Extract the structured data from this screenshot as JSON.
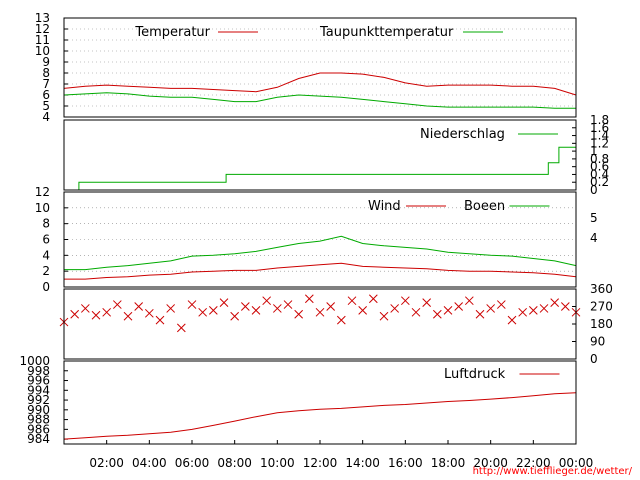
{
  "chart_data": [
    {
      "type": "line",
      "ylim": [
        4,
        13
      ],
      "yticks": [
        4,
        5,
        6,
        7,
        8,
        9,
        10,
        11,
        12,
        13
      ],
      "grid": true,
      "legend_position": "top-right",
      "series": [
        {
          "name": "Temperatur",
          "color": "#cc0000",
          "x": [
            0,
            1,
            2,
            3,
            4,
            5,
            6,
            7,
            8,
            9,
            10,
            11,
            12,
            13,
            14,
            15,
            16,
            17,
            18,
            19,
            20,
            21,
            22,
            23,
            24
          ],
          "values": [
            6.6,
            6.8,
            6.9,
            6.8,
            6.7,
            6.6,
            6.6,
            6.5,
            6.4,
            6.3,
            6.7,
            7.5,
            8.0,
            8.0,
            7.9,
            7.6,
            7.1,
            6.8,
            6.9,
            6.9,
            6.9,
            6.8,
            6.8,
            6.6,
            6.0
          ]
        },
        {
          "name": "Taupunkttemperatur",
          "color": "#00aa00",
          "x": [
            0,
            1,
            2,
            3,
            4,
            5,
            6,
            7,
            8,
            9,
            10,
            11,
            12,
            13,
            14,
            15,
            16,
            17,
            18,
            19,
            20,
            21,
            22,
            23,
            24
          ],
          "values": [
            6.0,
            6.1,
            6.2,
            6.1,
            5.9,
            5.8,
            5.8,
            5.6,
            5.4,
            5.4,
            5.8,
            6.0,
            5.9,
            5.8,
            5.6,
            5.4,
            5.2,
            5.0,
            4.9,
            4.9,
            4.9,
            4.9,
            4.9,
            4.8,
            4.8
          ]
        }
      ]
    },
    {
      "type": "line",
      "ylim": [
        0,
        1.8
      ],
      "yticks": [
        0,
        0.2,
        0.4,
        0.6,
        0.8,
        1.0,
        1.2,
        1.4,
        1.6,
        1.8
      ],
      "ytick_labels": [
        "0",
        "0.2",
        "0.4",
        "0.6",
        "0.8",
        "1",
        "1.2",
        "1.4",
        "1.6",
        "1.8"
      ],
      "legend_position": "top-right",
      "series": [
        {
          "name": "Niederschlag",
          "color": "#00aa00",
          "x": [
            0.7,
            0.7,
            7.6,
            7.6,
            22.7,
            22.7,
            23.2,
            23.2,
            24
          ],
          "values": [
            0,
            0.2,
            0.2,
            0.4,
            0.4,
            0.7,
            0.7,
            1.1,
            1.1
          ]
        }
      ]
    },
    {
      "type": "line",
      "ylim": [
        0,
        12
      ],
      "yticks": [
        0,
        2,
        4,
        6,
        8,
        10,
        12
      ],
      "y2ticks": [
        4,
        5
      ],
      "grid": true,
      "legend_position": "top-right",
      "series": [
        {
          "name": "Wind",
          "color": "#cc0000",
          "x": [
            0,
            1,
            2,
            3,
            4,
            5,
            6,
            7,
            8,
            9,
            10,
            11,
            12,
            13,
            14,
            15,
            16,
            17,
            18,
            19,
            20,
            21,
            22,
            23,
            24
          ],
          "values": [
            1.0,
            1.0,
            1.2,
            1.3,
            1.5,
            1.6,
            1.9,
            2.0,
            2.1,
            2.1,
            2.4,
            2.6,
            2.8,
            3.0,
            2.6,
            2.5,
            2.4,
            2.3,
            2.1,
            2.0,
            2.0,
            1.9,
            1.8,
            1.6,
            1.3
          ]
        },
        {
          "name": "Boeen",
          "color": "#00aa00",
          "x": [
            0,
            1,
            2,
            3,
            4,
            5,
            6,
            7,
            8,
            9,
            10,
            11,
            12,
            13,
            14,
            15,
            16,
            17,
            18,
            19,
            20,
            21,
            22,
            23,
            24
          ],
          "values": [
            2.2,
            2.2,
            2.5,
            2.7,
            3.0,
            3.3,
            3.9,
            4.0,
            4.2,
            4.5,
            5.0,
            5.5,
            5.8,
            6.4,
            5.5,
            5.2,
            5.0,
            4.8,
            4.4,
            4.2,
            4.0,
            3.9,
            3.6,
            3.3,
            2.7
          ]
        }
      ]
    },
    {
      "type": "scatter",
      "ylim": [
        0,
        360
      ],
      "yticks": [
        0,
        90,
        180,
        270,
        360
      ],
      "marker_color": "#cc0000",
      "x": [
        0,
        0.5,
        1,
        1.5,
        2,
        2.5,
        3,
        3.5,
        4,
        4.5,
        5,
        5.5,
        6,
        6.5,
        7,
        7.5,
        8,
        8.5,
        9,
        9.5,
        10,
        10.5,
        11,
        11.5,
        12,
        12.5,
        13,
        13.5,
        14,
        14.5,
        15,
        15.5,
        16,
        16.5,
        17,
        17.5,
        18,
        18.5,
        19,
        19.5,
        20,
        20.5,
        21,
        21.5,
        22,
        22.5,
        23,
        23.5,
        24
      ],
      "values": [
        190,
        230,
        260,
        225,
        240,
        280,
        220,
        270,
        235,
        200,
        260,
        160,
        280,
        240,
        250,
        290,
        220,
        270,
        250,
        300,
        260,
        280,
        230,
        310,
        240,
        270,
        200,
        300,
        250,
        310,
        220,
        260,
        300,
        240,
        290,
        230,
        250,
        270,
        300,
        230,
        260,
        280,
        200,
        240,
        250,
        260,
        290,
        270,
        240
      ]
    },
    {
      "type": "line",
      "ylim": [
        983,
        1000
      ],
      "yticks": [
        984,
        986,
        988,
        990,
        992,
        994,
        996,
        998,
        1000
      ],
      "legend_position": "top-right",
      "series": [
        {
          "name": "Luftdruck",
          "color": "#cc0000",
          "x": [
            0,
            1,
            2,
            3,
            4,
            5,
            6,
            7,
            8,
            9,
            10,
            11,
            12,
            13,
            14,
            15,
            16,
            17,
            18,
            19,
            20,
            21,
            22,
            23,
            24
          ],
          "values": [
            984.0,
            984.3,
            984.6,
            984.8,
            985.1,
            985.4,
            986.0,
            986.8,
            987.7,
            988.6,
            989.4,
            989.8,
            990.1,
            990.3,
            990.6,
            990.9,
            991.1,
            991.4,
            991.7,
            991.9,
            992.2,
            992.5,
            992.9,
            993.3,
            993.5
          ]
        }
      ]
    }
  ],
  "xaxis": {
    "xlim": [
      0,
      24
    ],
    "ticks": [
      2,
      4,
      6,
      8,
      10,
      12,
      14,
      16,
      18,
      20,
      22,
      24
    ],
    "labels": [
      "02:00",
      "04:00",
      "06:00",
      "08:00",
      "10:00",
      "12:00",
      "14:00",
      "16:00",
      "18:00",
      "20:00",
      "22:00",
      "00:00"
    ]
  },
  "footer": {
    "url": "http://www.tiefflieger.de/wetter/",
    "color": "#ff0000"
  }
}
